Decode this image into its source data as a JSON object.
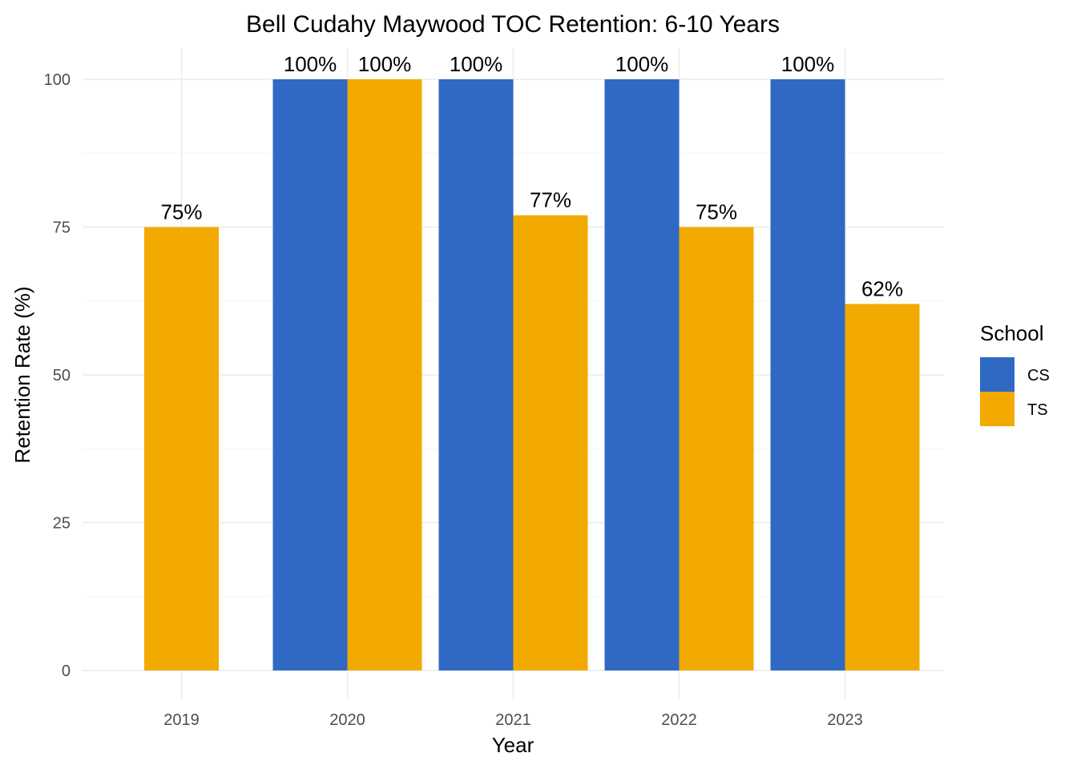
{
  "chart_data": {
    "type": "bar",
    "title": "Bell Cudahy Maywood TOC Retention: 6-10 Years",
    "xlabel": "Year",
    "ylabel": "Retention Rate (%)",
    "categories": [
      "2019",
      "2020",
      "2021",
      "2022",
      "2023"
    ],
    "series": [
      {
        "name": "CS",
        "color": "#2f69c4",
        "values": [
          null,
          100,
          100,
          100,
          100
        ],
        "labels": [
          "",
          "100%",
          "100%",
          "100%",
          "100%"
        ]
      },
      {
        "name": "TS",
        "color": "#f2aa00",
        "values": [
          75,
          100,
          77,
          75,
          62
        ],
        "labels": [
          "75%",
          "100%",
          "77%",
          "75%",
          "62%"
        ]
      }
    ],
    "ylim": [
      0,
      100
    ],
    "yticks": [
      0,
      25,
      50,
      75,
      100
    ],
    "ytick_labels": [
      "0",
      "25",
      "50",
      "75",
      "100"
    ],
    "grid": true,
    "legend": {
      "title": "School",
      "position": "right"
    }
  }
}
